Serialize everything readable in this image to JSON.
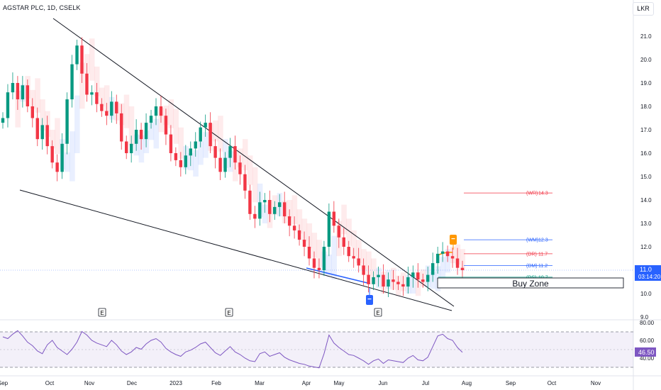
{
  "header": {
    "title": "AGSTAR PLC, 1D, CSELK",
    "currency": "LKR"
  },
  "chart_data": {
    "type": "candlestick",
    "price_axis": {
      "ticks": [
        21.0,
        20.0,
        19.0,
        18.0,
        17.0,
        16.0,
        15.0,
        14.0,
        13.0,
        12.0,
        11.0,
        10.0,
        9.0
      ]
    },
    "time_axis": {
      "labels": [
        "Sep",
        "Oct",
        "Nov",
        "Dec",
        "2023",
        "Feb",
        "Mar",
        "Apr",
        "May",
        "Jun",
        "Jul",
        "Aug",
        "Sep",
        "Oct",
        "Nov"
      ]
    },
    "current_price": {
      "value": "11.0",
      "countdown": "03:14:20"
    },
    "levels": [
      {
        "label": "(WR)",
        "value": "14.3",
        "price": 14.3,
        "color": "#f23645"
      },
      {
        "label": "(WM)",
        "value": "12.3",
        "price": 12.3,
        "color": "#2962ff"
      },
      {
        "label": "(DR)",
        "value": "11.7",
        "price": 11.7,
        "color": "#f23645"
      },
      {
        "label": "(DM)",
        "value": "11.2",
        "price": 11.2,
        "color": "#2962ff"
      },
      {
        "label": "(DS)",
        "value": "10.7",
        "price": 10.7,
        "color": "#089981"
      }
    ],
    "annotations": {
      "buy_zone": "Buy Zone",
      "earnings_marker": "E"
    },
    "close_series": [
      17.5,
      18.6,
      19.0,
      18.3,
      18.9,
      18.0,
      17.5,
      16.6,
      17.2,
      16.3,
      15.6,
      15.2,
      16.4,
      18.3,
      19.8,
      20.6,
      19.4,
      18.5,
      18.6,
      18.1,
      17.8,
      17.6,
      18.2,
      17.7,
      16.5,
      16.0,
      16.4,
      17.0,
      16.6,
      17.3,
      17.6,
      18.0,
      17.6,
      16.8,
      16.0,
      15.7,
      15.4,
      15.9,
      16.2,
      16.5,
      17.1,
      17.3,
      16.3,
      15.8,
      15.2,
      15.8,
      16.3,
      15.6,
      15.1,
      14.4,
      13.4,
      13.2,
      13.9,
      14.0,
      13.4,
      13.7,
      13.9,
      13.3,
      12.9,
      12.7,
      12.3,
      12.0,
      11.5,
      11.1,
      11.0,
      12.0,
      13.5,
      12.9,
      12.4,
      12.0,
      11.6,
      11.5,
      11.2,
      10.8,
      10.4,
      10.7,
      10.8,
      10.3,
      10.6,
      10.5,
      10.4,
      10.3,
      10.7,
      10.9,
      10.6,
      10.5,
      10.8,
      11.3,
      11.7,
      11.8,
      11.6,
      11.5,
      11.1,
      11.0
    ],
    "rsi": {
      "ticks": [
        "80.00",
        "60.00",
        "40.00"
      ],
      "current": "46.50",
      "values": [
        64,
        62,
        67,
        71,
        65,
        58,
        54,
        48,
        45,
        55,
        60,
        52,
        48,
        44,
        50,
        58,
        70,
        66,
        60,
        57,
        55,
        53,
        60,
        55,
        48,
        44,
        47,
        52,
        50,
        56,
        60,
        62,
        58,
        51,
        47,
        44,
        42,
        47,
        49,
        52,
        56,
        58,
        52,
        46,
        43,
        48,
        53,
        47,
        44,
        40,
        37,
        36,
        45,
        47,
        42,
        44,
        46,
        41,
        38,
        36,
        34,
        33,
        31,
        30,
        29,
        45,
        66,
        57,
        52,
        48,
        44,
        43,
        40,
        37,
        33,
        37,
        39,
        34,
        38,
        37,
        36,
        35,
        40,
        43,
        38,
        37,
        41,
        53,
        65,
        67,
        62,
        60,
        52,
        46.5
      ]
    }
  }
}
